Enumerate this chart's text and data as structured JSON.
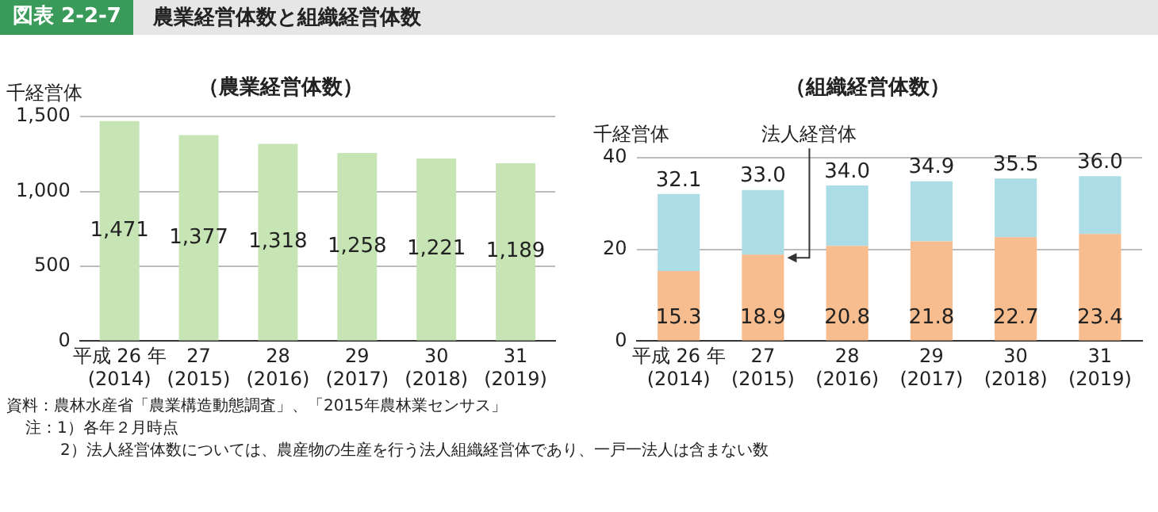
{
  "chart_data": [
    {
      "type": "bar",
      "title": "（農業経営体数）",
      "ylabel": "千経営体",
      "categories": [
        "平成 26 年\n(2014)",
        "27\n(2015)",
        "28\n(2016)",
        "29\n(2017)",
        "30\n(2018)",
        "31\n(2019)"
      ],
      "values": [
        1471,
        1377,
        1318,
        1258,
        1221,
        1189
      ],
      "color": "#c6e4b4",
      "ylim": [
        0,
        1500
      ],
      "yticks": [
        0,
        {
          "value": 500,
          "label": "500"
        },
        {
          "value": 1000,
          "label": "1,000"
        },
        {
          "value": 1500,
          "label": "1,500"
        }
      ],
      "grid": "y",
      "value_labels": [
        "1,471",
        "1,377",
        "1,318",
        "1,258",
        "1,221",
        "1,189"
      ],
      "annotations": [
        "図表 2-2-7",
        "農業経営体数と組織経営体数"
      ]
    },
    {
      "type": "bar",
      "title": "（組織経営体数）",
      "ylabel": "千経営体",
      "categories": [
        "平成 26 年\n(2014)",
        "27\n(2015)",
        "28\n(2016)",
        "29\n(2017)",
        "30\n(2018)",
        "31\n(2019)"
      ],
      "stacked": true,
      "series": [
        {
          "name": "法人経営体",
          "color": "#f7bd8f",
          "values": [
            15.3,
            18.9,
            20.8,
            21.8,
            22.7,
            23.4
          ],
          "value_labels": [
            "15.3",
            "18.9",
            "20.8",
            "21.8",
            "22.7",
            "23.4"
          ]
        },
        {
          "color": "#acdde6",
          "values": [
            16.8,
            14.1,
            13.2,
            13.1,
            12.8,
            12.6
          ]
        }
      ],
      "totals": [
        "32.1",
        "33.0",
        "34.0",
        "34.9",
        "35.5",
        "36.0"
      ],
      "ylim": [
        0,
        40
      ],
      "yticks": [
        0,
        20,
        40
      ],
      "grid": "y",
      "annotations": [
        "資料：農林水産省「農業構造動態調査」、「2015年農林業センサス」",
        "注：1）各年２月時点",
        "2）法人経営体数については、農産物の生産を行う法人組織経営体であり、一戸一法人は含まない数"
      ]
    }
  ]
}
